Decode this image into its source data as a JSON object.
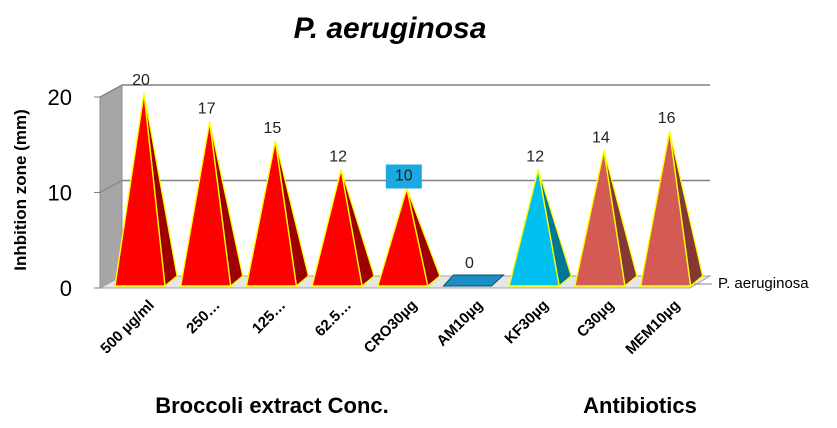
{
  "chart_data": {
    "type": "bar",
    "title": "P. aeruginosa",
    "ylabel": "Inhbition zone  (mm)",
    "ylim": [
      0,
      20
    ],
    "yticks": [
      0,
      10,
      20
    ],
    "categories": [
      "500 µg/ml",
      "250…",
      "125…",
      "62.5…",
      "CRO30µg",
      "AM10µg",
      "KF30µg",
      "C30µg",
      "MEM10µg"
    ],
    "series": [
      {
        "name": "P. aeruginosa",
        "values": [
          20,
          17,
          15,
          12,
          10,
          0,
          12,
          14,
          16
        ]
      }
    ],
    "data_labels": [
      "20",
      "17",
      "15",
      "12",
      "10",
      "0",
      "12",
      "14",
      "16"
    ],
    "group_labels": [
      "Broccoli extract Conc.",
      "Antibiotics"
    ],
    "bar_shape": "pyramid",
    "bar_colors": [
      "#ff0000",
      "#ff0000",
      "#ff0000",
      "#ff0000",
      "#ff0000",
      "#1a8fc4",
      "#00c0f0",
      "#d45a54",
      "#d45a54"
    ],
    "highlighted_label_index": 4,
    "highlight_color": "#1aa9e0",
    "grid": true,
    "legend": "right"
  }
}
